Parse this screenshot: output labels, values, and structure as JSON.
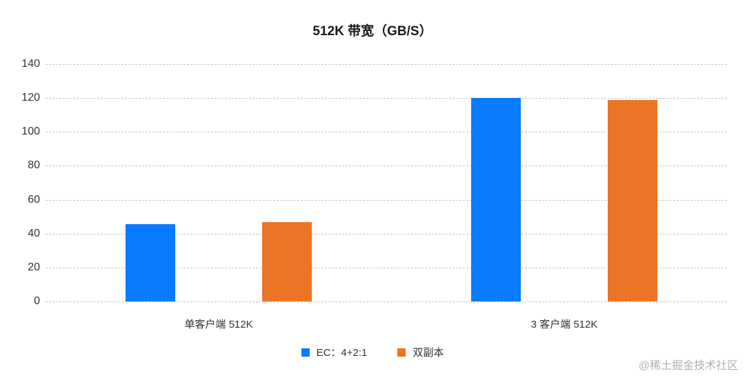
{
  "chart_data": {
    "type": "bar",
    "title": "512K 带宽（GB/S）",
    "xlabel": "",
    "ylabel": "",
    "ylim": [
      0,
      140
    ],
    "yticks": [
      0,
      20,
      40,
      60,
      80,
      100,
      120,
      140
    ],
    "grid": true,
    "legend_position": "bottom",
    "categories": [
      "单客户端 512K",
      "3 客户端 512K"
    ],
    "series": [
      {
        "name": "EC：4+2:1",
        "color": "#0a7aff",
        "values": [
          45.5,
          120
        ]
      },
      {
        "name": "双副本",
        "color": "#ec7525",
        "values": [
          47,
          119
        ]
      }
    ]
  },
  "watermark": "@稀土掘金技术社区"
}
